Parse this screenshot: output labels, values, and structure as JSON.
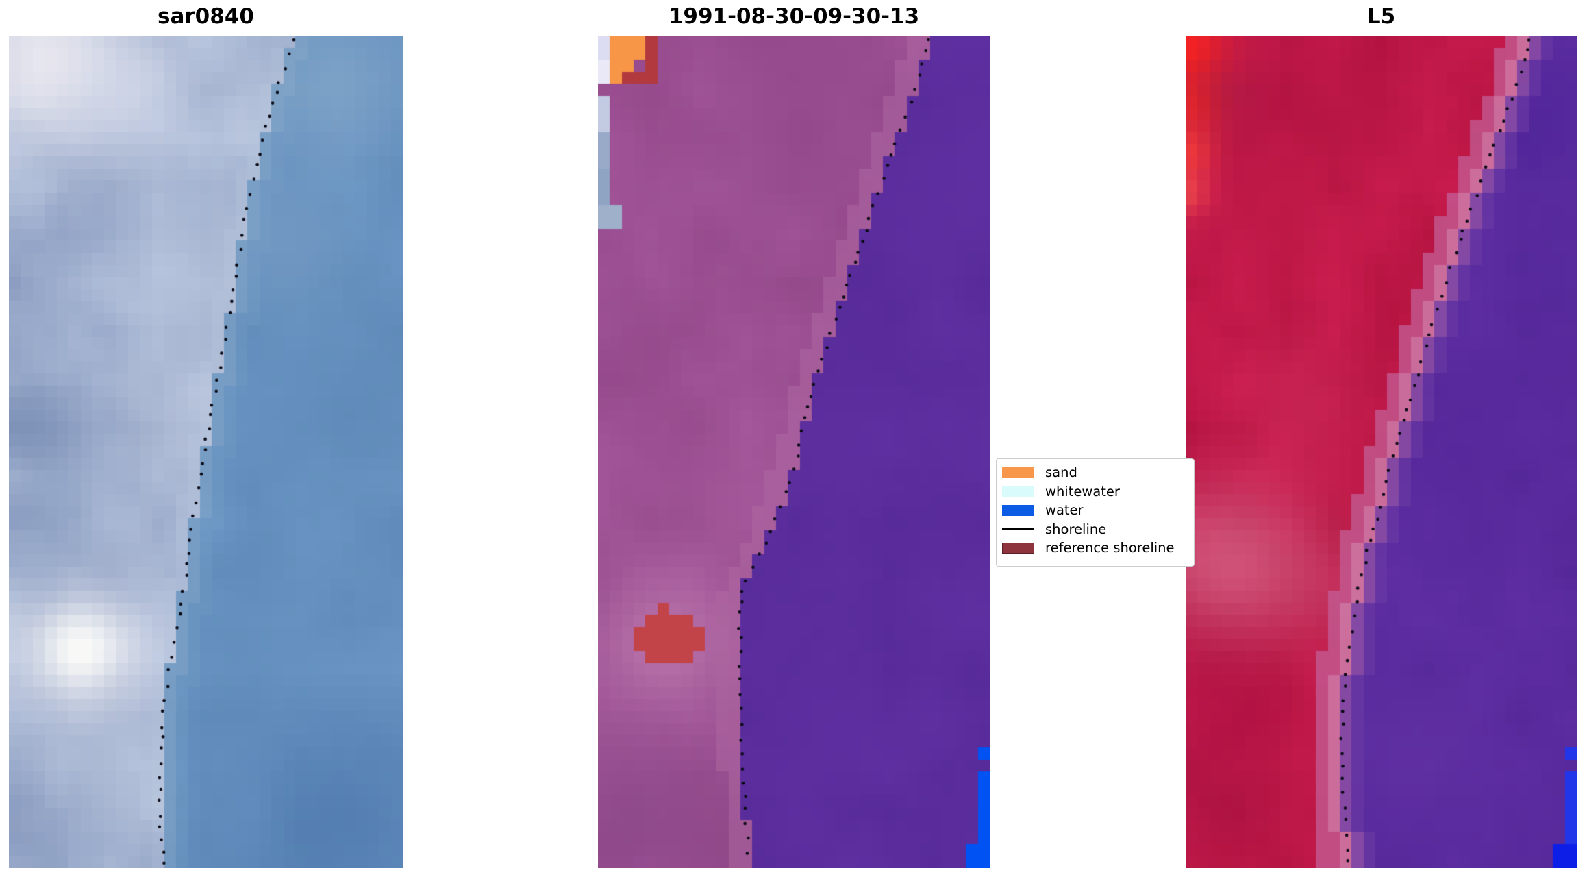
{
  "figure": {
    "background": "#FFFFFF"
  },
  "panels": [
    {
      "title": "sar0840",
      "name": "sar0840",
      "render": {
        "grid": [
          33,
          69
        ],
        "seed": 11,
        "noise_scale": 4,
        "land": {
          "base": "#9FAFCE",
          "amp": [
            26,
            24,
            18
          ],
          "blobs": [
            [
              0.1,
              0.03,
              5,
              "#F4F0F4",
              0.85
            ],
            [
              0.3,
              0.07,
              4,
              "#D9DDED",
              0.55
            ],
            [
              0.62,
              0.08,
              3.5,
              "#CBD5E7",
              0.5
            ],
            [
              0.05,
              0.46,
              4,
              "#7085AE",
              0.6
            ],
            [
              0.3,
              0.28,
              5,
              "#AFBCD8",
              0.45
            ],
            [
              0.55,
              0.3,
              5,
              "#C2CCE0",
              0.5
            ],
            [
              0.42,
              0.47,
              4,
              "#C8D0E3",
              0.45
            ],
            [
              0.185,
              0.735,
              4.5,
              "#E9E9F1",
              0.75
            ],
            [
              0.185,
              0.735,
              2.3,
              "#FEFEFA",
              0.95
            ],
            [
              0.13,
              0.6,
              3.5,
              "#7B91B7",
              0.45
            ],
            [
              0.33,
              0.62,
              3.5,
              "#A9B6D3",
              0.4
            ],
            [
              0.25,
              0.9,
              4,
              "#C2CCE0",
              0.45
            ],
            [
              0.08,
              0.97,
              3.5,
              "#8FA2C5",
              0.4
            ]
          ]
        },
        "water": {
          "base": "#6590BF",
          "amp": [
            7,
            7,
            7
          ],
          "blobs": [
            [
              0.82,
              0.06,
              4.5,
              "#8FB0CE",
              0.55
            ],
            [
              0.7,
              0.25,
              4,
              "#7FA2C6",
              0.45
            ],
            [
              0.95,
              0.45,
              6,
              "#5D89B7",
              0.45
            ],
            [
              0.85,
              0.95,
              6,
              "#4B75AB",
              0.65
            ],
            [
              0.6,
              0.75,
              4,
              "#5F8BB9",
              0.4
            ]
          ]
        },
        "bands": [
          [
            -1.2,
            0,
            "#B9C7DD",
            0.3
          ],
          [
            0,
            1.1,
            "#8FAECB",
            0.4
          ],
          [
            1.1,
            2.2,
            "#79A0C4",
            0.25
          ]
        ],
        "rects": [],
        "shoreline": [
          [
            0.725,
            0.0
          ],
          [
            0.705,
            0.03
          ],
          [
            0.685,
            0.06
          ],
          [
            0.665,
            0.09
          ],
          [
            0.648,
            0.12
          ],
          [
            0.633,
            0.15
          ],
          [
            0.618,
            0.18
          ],
          [
            0.603,
            0.21
          ],
          [
            0.59,
            0.245
          ],
          [
            0.578,
            0.28
          ],
          [
            0.565,
            0.315
          ],
          [
            0.553,
            0.35
          ],
          [
            0.54,
            0.385
          ],
          [
            0.527,
            0.42
          ],
          [
            0.513,
            0.455
          ],
          [
            0.5,
            0.49
          ],
          [
            0.487,
            0.525
          ],
          [
            0.474,
            0.56
          ],
          [
            0.462,
            0.6
          ],
          [
            0.45,
            0.645
          ],
          [
            0.437,
            0.68
          ],
          [
            0.425,
            0.715
          ],
          [
            0.412,
            0.75
          ],
          [
            0.4,
            0.785
          ],
          [
            0.392,
            0.82
          ],
          [
            0.386,
            0.855
          ],
          [
            0.383,
            0.89
          ],
          [
            0.382,
            0.925
          ],
          [
            0.387,
            0.96
          ],
          [
            0.395,
            1.0
          ]
        ],
        "dots": {
          "color": "#0B0B16",
          "radius": 2.3,
          "spacing": 19,
          "jitter": 2.2
        }
      }
    },
    {
      "title": "1991-08-30-09-30-13",
      "name": "classified",
      "render": {
        "grid": [
          33,
          69
        ],
        "seed": 23,
        "noise_scale": 4,
        "land": {
          "base": "#9C5093",
          "amp": [
            8,
            7,
            8
          ],
          "blobs": [
            [
              0.17,
              0.73,
              3,
              "#CB86B6",
              0.8
            ],
            [
              0.17,
              0.73,
              5.5,
              "#B06AA4",
              0.55
            ],
            [
              0.1,
              0.94,
              5,
              "#7F4181",
              0.5
            ],
            [
              0.55,
              0.08,
              6,
              "#8E4489",
              0.45
            ],
            [
              0.45,
              0.55,
              5,
              "#A75B9C",
              0.35
            ],
            [
              0.5,
              0.97,
              4,
              "#83427F",
              0.45
            ],
            [
              0.03,
              0.35,
              3,
              "#93498C",
              0.3
            ]
          ]
        },
        "water": {
          "base": "#5B2D9D",
          "amp": [
            4,
            3,
            4
          ],
          "blobs": []
        },
        "bands": [
          [
            -1.8,
            0,
            "#B069A2",
            0.5
          ]
        ],
        "rects": [
          [
            0.0,
            0.0,
            0.03,
            0.036,
            "#DCDCF2"
          ],
          [
            0.0,
            0.036,
            0.03,
            0.034,
            "#E9E9F7"
          ],
          [
            0.0,
            0.07,
            0.03,
            0.04,
            "#C3CBE3"
          ],
          [
            0.0,
            0.11,
            0.036,
            0.05,
            "#98AAC8"
          ],
          [
            0.0,
            0.16,
            0.03,
            0.046,
            "#8FA3C2"
          ],
          [
            0.0,
            0.206,
            0.056,
            0.036,
            "#9FB0CB"
          ],
          [
            0.03,
            0.0,
            0.096,
            0.034,
            "#F79646"
          ],
          [
            0.03,
            0.034,
            0.064,
            0.03,
            "#F79646"
          ],
          [
            0.126,
            0.0,
            0.04,
            0.046,
            "#B23A3F"
          ],
          [
            0.064,
            0.046,
            0.096,
            0.017,
            "#B23A3F"
          ],
          [
            0.115,
            0.7,
            0.125,
            0.064,
            "#C24449"
          ],
          [
            0.147,
            0.688,
            0.036,
            0.014,
            "#C24449"
          ],
          [
            0.088,
            0.714,
            0.028,
            0.024,
            "#C24449"
          ],
          [
            0.24,
            0.714,
            0.026,
            0.024,
            "#C24449"
          ],
          [
            0.955,
            0.852,
            0.032,
            0.014,
            "#0052F2"
          ],
          [
            0.966,
            0.884,
            0.034,
            0.116,
            "#0052F2"
          ],
          [
            0.934,
            0.968,
            0.066,
            0.032,
            "#0052F2"
          ]
        ],
        "shoreline": [
          [
            0.85,
            0.0
          ],
          [
            0.83,
            0.03
          ],
          [
            0.81,
            0.06
          ],
          [
            0.79,
            0.09
          ],
          [
            0.765,
            0.12
          ],
          [
            0.74,
            0.155
          ],
          [
            0.715,
            0.19
          ],
          [
            0.69,
            0.225
          ],
          [
            0.665,
            0.26
          ],
          [
            0.64,
            0.295
          ],
          [
            0.615,
            0.33
          ],
          [
            0.59,
            0.365
          ],
          [
            0.565,
            0.4
          ],
          [
            0.54,
            0.44
          ],
          [
            0.52,
            0.48
          ],
          [
            0.5,
            0.52
          ],
          [
            0.475,
            0.555
          ],
          [
            0.445,
            0.59
          ],
          [
            0.41,
            0.625
          ],
          [
            0.38,
            0.65
          ],
          [
            0.366,
            0.675
          ],
          [
            0.362,
            0.705
          ],
          [
            0.364,
            0.75
          ],
          [
            0.366,
            0.8
          ],
          [
            0.368,
            0.84
          ],
          [
            0.372,
            0.88
          ],
          [
            0.376,
            0.92
          ],
          [
            0.38,
            0.96
          ],
          [
            0.385,
            1.0
          ]
        ],
        "dots": {
          "color": "#0B0B16",
          "radius": 2.3,
          "spacing": 19,
          "jitter": 2.2
        }
      }
    },
    {
      "title": "L5",
      "name": "l5",
      "render": {
        "grid": [
          33,
          69
        ],
        "seed": 5,
        "noise_scale": 4,
        "land": {
          "base": "#C01848",
          "amp": [
            14,
            6,
            9
          ],
          "blobs": [
            [
              0.01,
              0.02,
              2.2,
              "#FF231C",
              0.95
            ],
            [
              0.02,
              0.08,
              1.8,
              "#FF2A1E",
              0.9
            ],
            [
              0.0,
              0.14,
              1.6,
              "#FF4434",
              0.8
            ],
            [
              0.0,
              0.19,
              1.3,
              "#FF5A48",
              0.6
            ],
            [
              0.09,
              0.07,
              2.5,
              "#941743",
              0.45
            ],
            [
              0.15,
              0.635,
              4.5,
              "#D4708F",
              0.55
            ],
            [
              0.04,
              0.63,
              3.5,
              "#D8688C",
              0.4
            ],
            [
              0.33,
              0.66,
              3,
              "#CA4E74",
              0.35
            ],
            [
              0.3,
              0.44,
              4,
              "#CB3560",
              0.3
            ],
            [
              0.1,
              0.82,
              4,
              "#AD0F45",
              0.4
            ],
            [
              0.08,
              0.92,
              5,
              "#A31240",
              0.4
            ],
            [
              0.45,
              0.08,
              5,
              "#B01343",
              0.35
            ],
            [
              0.25,
              0.2,
              5,
              "#C51E4B",
              0.3
            ]
          ]
        },
        "water": {
          "base": "#5A2B9E",
          "amp": [
            6,
            4,
            6
          ],
          "blobs": [
            [
              0.92,
              0.1,
              5,
              "#4B2398",
              0.5
            ],
            [
              0.75,
              0.45,
              6,
              "#532699",
              0.35
            ],
            [
              0.6,
              0.85,
              4,
              "#6636A6",
              0.4
            ],
            [
              0.97,
              0.3,
              3,
              "#4F2697",
              0.4
            ]
          ]
        },
        "bands": [
          [
            -2.2,
            -1,
            "#C25E96",
            0.75
          ],
          [
            -1,
            0,
            "#CE82B0",
            0.8
          ],
          [
            0,
            1,
            "#8F50A5",
            0.8
          ],
          [
            1,
            2,
            "#6B3AA4",
            0.6
          ]
        ],
        "rects": [
          [
            0.967,
            0.85,
            0.033,
            0.018,
            "#2136E8"
          ],
          [
            0.968,
            0.884,
            0.032,
            0.116,
            "#2136E8"
          ],
          [
            0.936,
            0.968,
            0.064,
            0.032,
            "#0D1FE6"
          ]
        ],
        "shoreline": [
          [
            0.88,
            0.0
          ],
          [
            0.865,
            0.03
          ],
          [
            0.845,
            0.06
          ],
          [
            0.822,
            0.09
          ],
          [
            0.798,
            0.12
          ],
          [
            0.775,
            0.15
          ],
          [
            0.752,
            0.18
          ],
          [
            0.728,
            0.21
          ],
          [
            0.705,
            0.24
          ],
          [
            0.683,
            0.27
          ],
          [
            0.662,
            0.3
          ],
          [
            0.642,
            0.33
          ],
          [
            0.622,
            0.36
          ],
          [
            0.603,
            0.39
          ],
          [
            0.585,
            0.42
          ],
          [
            0.567,
            0.45
          ],
          [
            0.548,
            0.48
          ],
          [
            0.528,
            0.51
          ],
          [
            0.508,
            0.545
          ],
          [
            0.488,
            0.58
          ],
          [
            0.468,
            0.615
          ],
          [
            0.45,
            0.65
          ],
          [
            0.435,
            0.685
          ],
          [
            0.422,
            0.72
          ],
          [
            0.412,
            0.755
          ],
          [
            0.405,
            0.79
          ],
          [
            0.401,
            0.825
          ],
          [
            0.4,
            0.86
          ],
          [
            0.402,
            0.895
          ],
          [
            0.406,
            0.93
          ],
          [
            0.411,
            0.965
          ],
          [
            0.416,
            1.0
          ]
        ],
        "dots": {
          "color": "#0B0B16",
          "radius": 2.3,
          "spacing": 19,
          "jitter": 2.2
        }
      }
    }
  ],
  "legend": {
    "entries": [
      {
        "label": "sand",
        "type": "patch",
        "color": "#F8974A"
      },
      {
        "label": "whitewater",
        "type": "patch",
        "color": "#D9FBFC"
      },
      {
        "label": "water",
        "type": "patch",
        "color": "#0C5BE5"
      },
      {
        "label": "shoreline",
        "type": "line",
        "color": "#000000"
      },
      {
        "label": "reference shoreline",
        "type": "patch",
        "color": "#8E343C",
        "border": "#5A2026"
      }
    ]
  },
  "chart_data": {
    "type": "heatmap",
    "title": "",
    "panels": [
      {
        "title": "sar0840",
        "content": "SAR backscatter satellite image in blue-gray tones; land (mottled light blue, bright white cloud-like patch lower-left) on left, uniform steel-blue water on right, black dotted detected shoreline running from top (x=0.72 of width) curving to bottom (x=0.40)"
      },
      {
        "title": "1991-08-30-09-30-13",
        "content": "Classified optical image: mauve/magenta land on left, solid purple water on right with stair-step class boundary; orange sand patch and dark-red pixels at top-left, lavender whitewater strip on left edge, brick-red reference-shoreline blob at (0.17,0.73), bright blue water pixels at bottom-right edge, black dotted shoreline from (0.85,0) to (0.38,1)"
      },
      {
        "title": "L5",
        "content": "Landsat 5 false-color image: crimson-red land on left with bright red patch at top-left edge and lighter pink band mid-left, violet-purple water on right, pink transition band along shoreline, blue pixels at bottom-right edge, black dotted shoreline from (0.88,0) to (0.42,1)"
      }
    ],
    "legend_entries": [
      "sand",
      "whitewater",
      "water",
      "shoreline",
      "reference shoreline"
    ],
    "legend_colors": [
      "#F8974A",
      "#D9FBFC",
      "#0C5BE5",
      "#000000",
      "#8E343C"
    ],
    "legend_position": "right of middle panel, vertically centered",
    "grid": false,
    "axes": "none (image panels without ticks)"
  }
}
